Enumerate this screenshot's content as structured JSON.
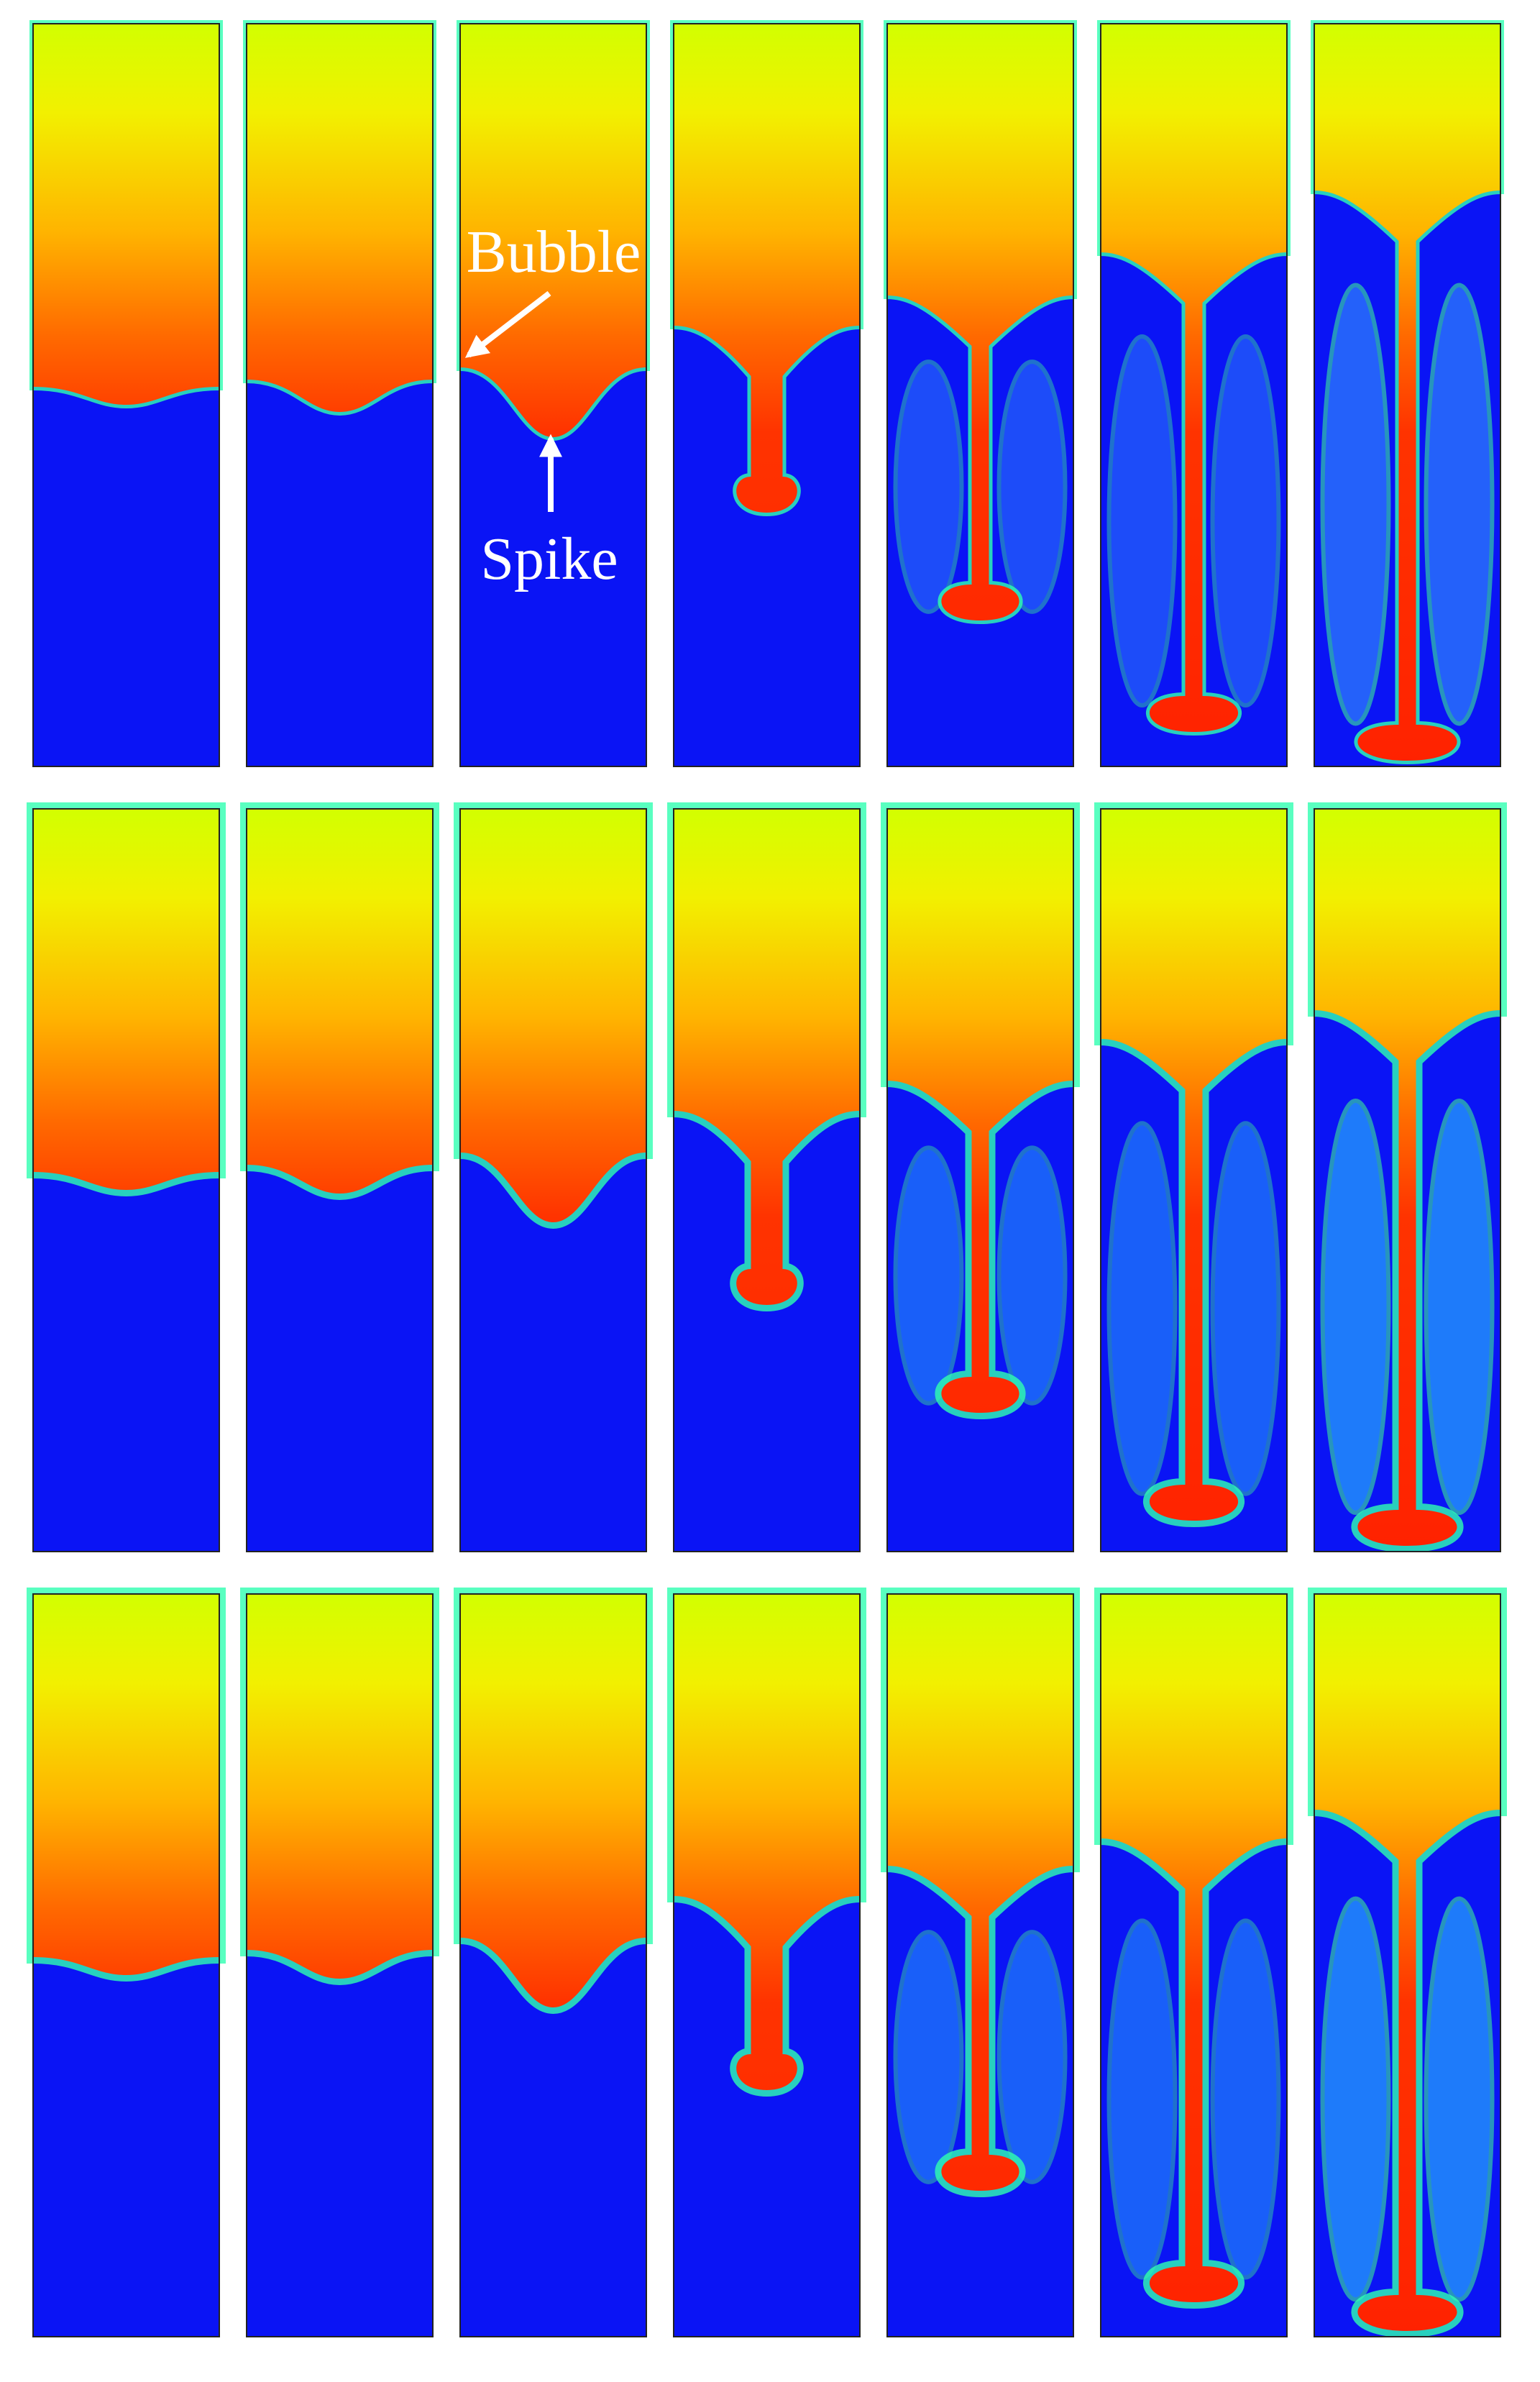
{
  "annotations": {
    "bubble": "Bubble",
    "spike": "Spike"
  }
}
